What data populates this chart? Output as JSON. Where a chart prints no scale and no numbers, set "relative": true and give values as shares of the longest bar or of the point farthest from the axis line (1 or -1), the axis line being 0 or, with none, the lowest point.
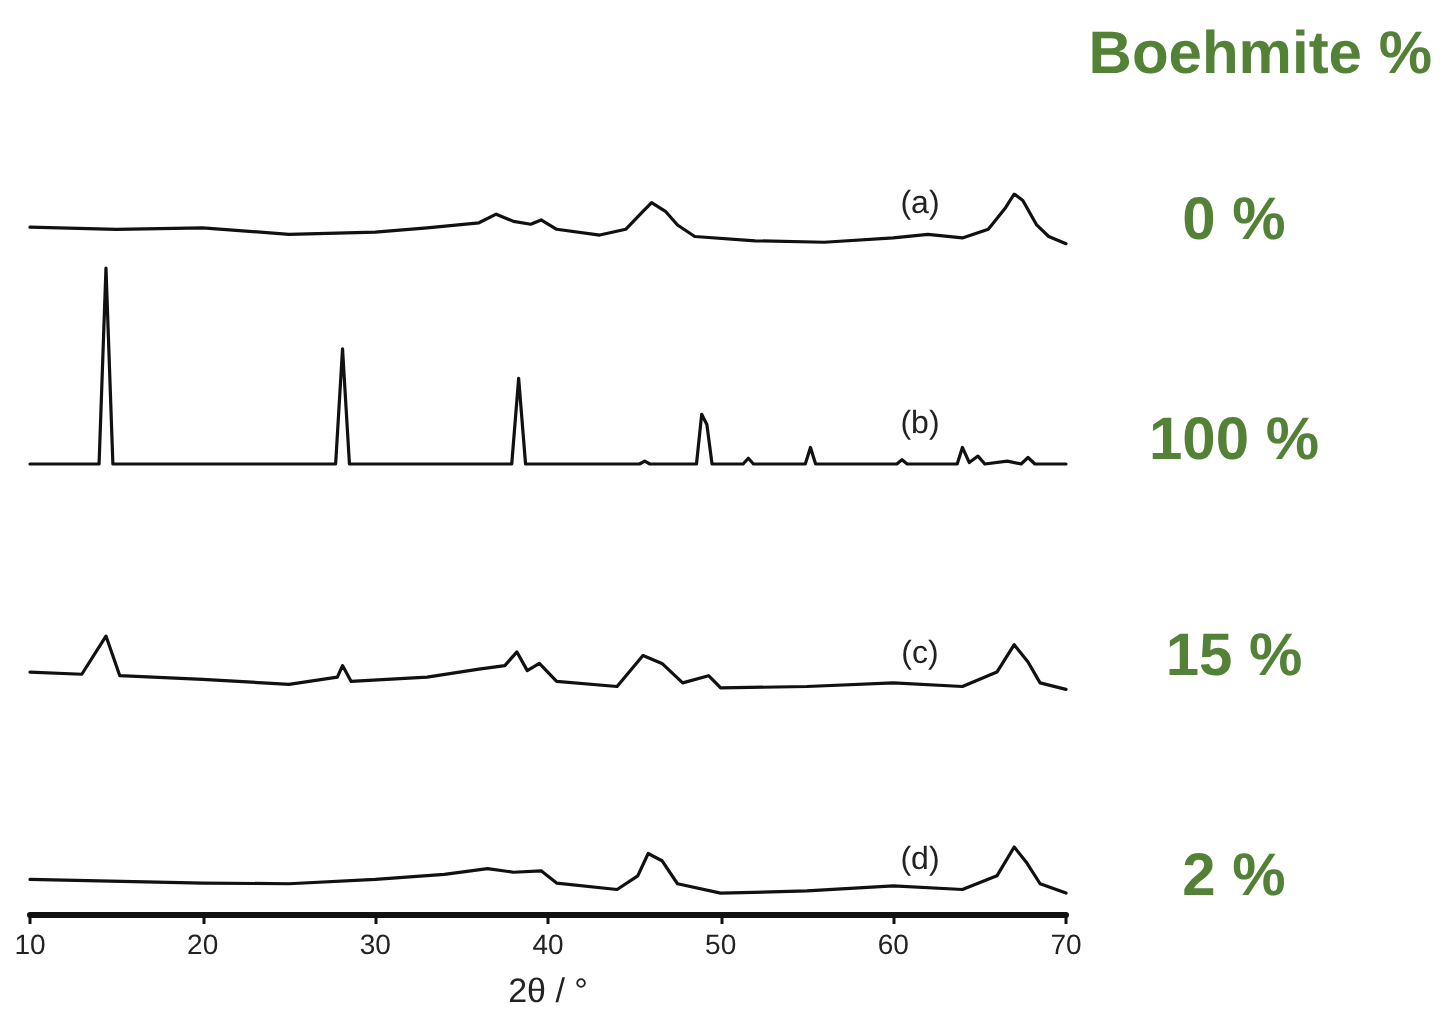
{
  "chart_data": {
    "type": "line",
    "title": "Boehmite %",
    "xlabel": "2θ / °",
    "relative": true,
    "xlim": [
      10,
      70
    ],
    "xticks": [
      10,
      20,
      30,
      40,
      50,
      60,
      70
    ],
    "grid": false,
    "marker": "none",
    "line_style": "solid",
    "series": [
      {
        "color": "#111111",
        "x": [
          10,
          15,
          20,
          25,
          30,
          33,
          36,
          37,
          38,
          39,
          39.6,
          40.5,
          43,
          44.5,
          45.5,
          46,
          46.8,
          47.5,
          48.5,
          52,
          56,
          60,
          62,
          64,
          65.5,
          66.5,
          67,
          67.5,
          68.3,
          69,
          70
        ],
        "values": [
          0.954,
          0.951,
          0.953,
          0.944,
          0.947,
          0.953,
          0.96,
          0.972,
          0.962,
          0.958,
          0.964,
          0.951,
          0.943,
          0.951,
          0.976,
          0.988,
          0.976,
          0.957,
          0.941,
          0.935,
          0.933,
          0.939,
          0.944,
          0.939,
          0.951,
          0.981,
          1.0,
          0.991,
          0.957,
          0.941,
          0.931
        ]
      },
      {
        "color": "#111111",
        "x": [
          10,
          14.0,
          14.4,
          14.8,
          27.7,
          28.1,
          28.5,
          37.9,
          38.3,
          38.7,
          45.3,
          45.6,
          45.9,
          48.6,
          48.9,
          49.2,
          49.5,
          51.3,
          51.6,
          51.9,
          54.9,
          55.2,
          55.5,
          60.2,
          60.5,
          60.8,
          63.7,
          64.0,
          64.4,
          64.9,
          65.3,
          66.6,
          67.4,
          67.8,
          68.2,
          70
        ],
        "values": [
          0.625,
          0.625,
          0.897,
          0.625,
          0.625,
          0.785,
          0.625,
          0.625,
          0.744,
          0.625,
          0.625,
          0.629,
          0.625,
          0.625,
          0.694,
          0.68,
          0.625,
          0.625,
          0.633,
          0.625,
          0.625,
          0.648,
          0.625,
          0.625,
          0.631,
          0.625,
          0.625,
          0.648,
          0.627,
          0.636,
          0.625,
          0.629,
          0.625,
          0.634,
          0.625,
          0.625
        ]
      },
      {
        "color": "#111111",
        "x": [
          10,
          13,
          14.4,
          15.2,
          20,
          25,
          27.8,
          28.1,
          28.6,
          33,
          36,
          37.5,
          38.2,
          38.8,
          39.5,
          40.5,
          44,
          45.5,
          46.6,
          47.8,
          49.3,
          50,
          55,
          60,
          64,
          66,
          67,
          67.8,
          68.5,
          70
        ],
        "values": [
          0.336,
          0.333,
          0.386,
          0.331,
          0.326,
          0.319,
          0.329,
          0.345,
          0.323,
          0.329,
          0.34,
          0.345,
          0.364,
          0.338,
          0.348,
          0.323,
          0.316,
          0.359,
          0.348,
          0.321,
          0.331,
          0.314,
          0.316,
          0.321,
          0.316,
          0.336,
          0.374,
          0.35,
          0.321,
          0.312
        ]
      },
      {
        "color": "#111111",
        "x": [
          10,
          20,
          25,
          30,
          34,
          36.5,
          38,
          39.6,
          40.5,
          44,
          45.2,
          45.8,
          46.6,
          47.5,
          50,
          55,
          60,
          64,
          66,
          67,
          67.7,
          68.5,
          70
        ],
        "values": [
          0.048,
          0.043,
          0.042,
          0.048,
          0.055,
          0.063,
          0.058,
          0.06,
          0.043,
          0.034,
          0.053,
          0.084,
          0.074,
          0.042,
          0.029,
          0.032,
          0.039,
          0.034,
          0.053,
          0.093,
          0.072,
          0.042,
          0.029
        ]
      }
    ],
    "annotations": [
      "(a)",
      "(b)",
      "(c)",
      "(d)",
      "0 %",
      "100 %",
      "15 %",
      "2 %"
    ]
  }
}
